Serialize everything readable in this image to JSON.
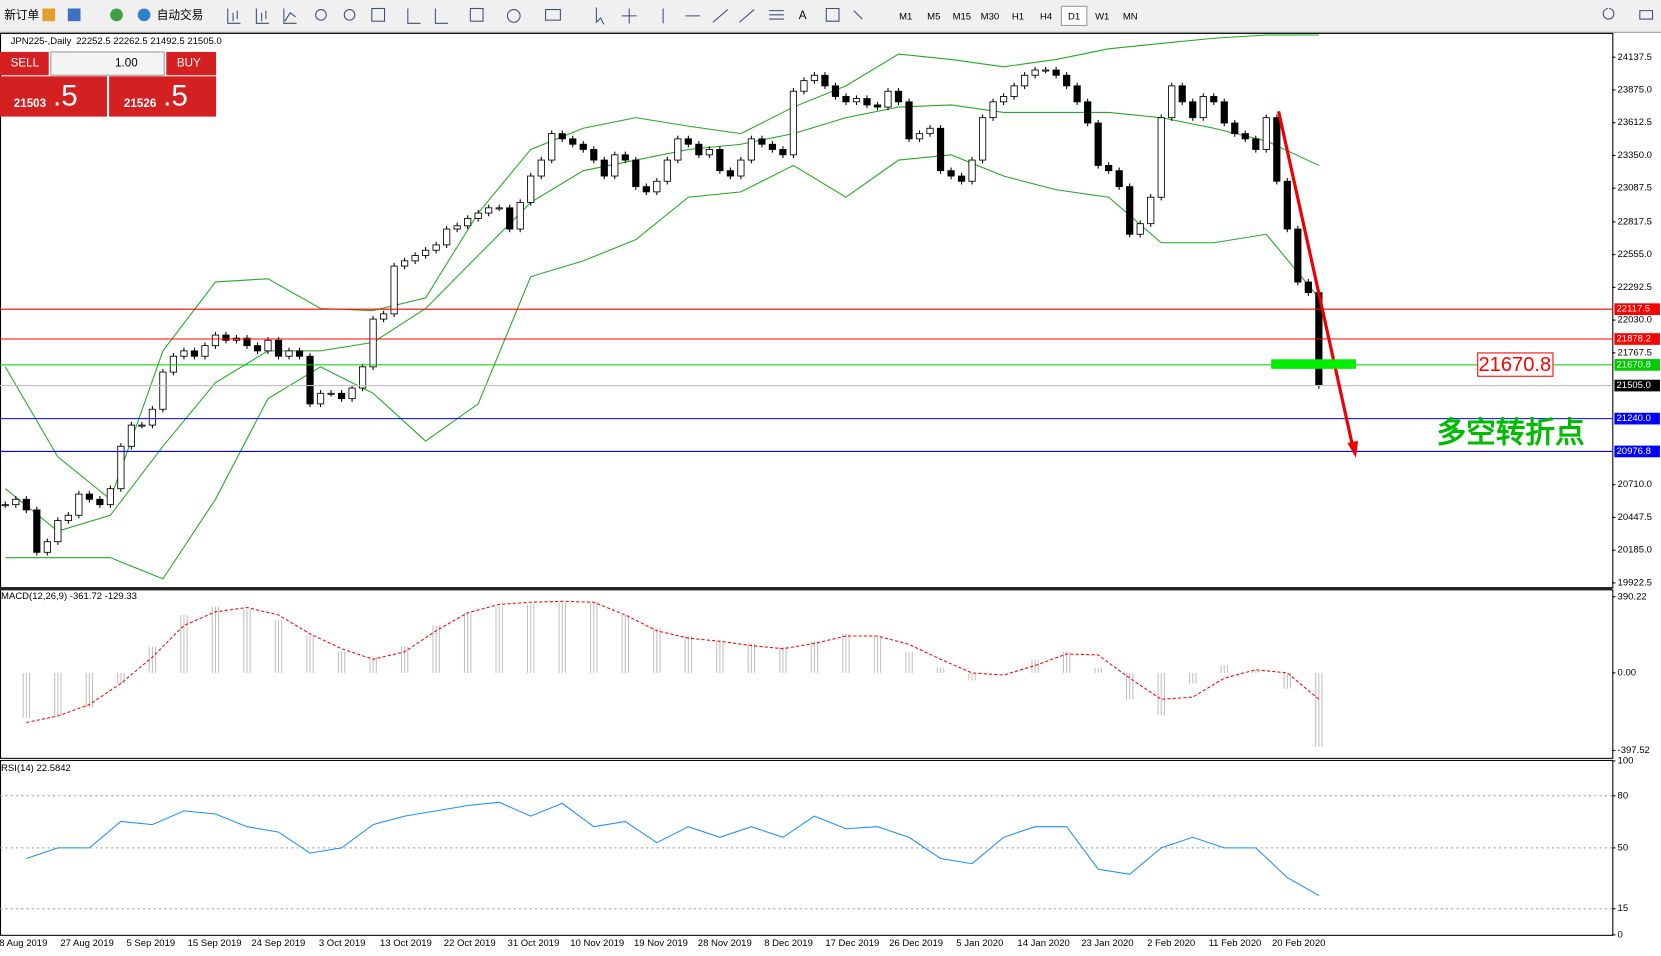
{
  "toolbar": {
    "new_order": "新订单",
    "auto_trading": "自动交易",
    "timeframes": [
      "M1",
      "M5",
      "M15",
      "M30",
      "H1",
      "H4",
      "D1",
      "W1",
      "MN"
    ]
  },
  "trade_panel": {
    "sell": "SELL",
    "buy": "BUY",
    "lots": "1.00",
    "bid": "21503",
    "bid_frac": ".5",
    "ask": "21526",
    "ask_frac": ".5"
  },
  "time_axis": [
    "8 Aug 2019",
    "27 Aug 2019",
    "5 Sep 2019",
    "15 Sep 2019",
    "24 Sep 2019",
    "3 Oct 2019",
    "13 Oct 2019",
    "22 Oct 2019",
    "31 Oct 2019",
    "10 Nov 2019",
    "19 Nov 2019",
    "28 Nov 2019",
    "8 Dec 2019",
    "17 Dec 2019",
    "26 Dec 2019",
    "5 Jan 2020",
    "14 Jan 2020",
    "23 Jan 2020",
    "2 Feb 2020",
    "11 Feb 2020",
    "20 Feb 2020"
  ],
  "chart_data": [
    {
      "type": "candlestick",
      "title": "JPN225-,Daily",
      "ohlc_header": "22252.5 22262.5 21492.5 21505.0",
      "close": [
        20550,
        20593,
        20508,
        20168,
        20253,
        20423,
        20465,
        20635,
        20593,
        20550,
        20678,
        21018,
        21188,
        21188,
        21315,
        21613,
        21740,
        21783,
        21740,
        21825,
        21910,
        21868,
        21885,
        21825,
        21783,
        21868,
        21740,
        21783,
        21740,
        21358,
        21443,
        21443,
        21400,
        21485,
        21655,
        22038,
        22080,
        22463,
        22505,
        22548,
        22590,
        22633,
        22760,
        22786,
        22845,
        22888,
        22930,
        22930,
        22760,
        22973,
        23185,
        23313,
        23525,
        23483,
        23440,
        23398,
        23313,
        23185,
        23355,
        23313,
        23100,
        23058,
        23143,
        23313,
        23483,
        23440,
        23355,
        23398,
        23228,
        23185,
        23313,
        23483,
        23440,
        23398,
        23355,
        23865,
        23950,
        23993,
        23908,
        23823,
        23780,
        23806,
        23755,
        23738,
        23865,
        23780,
        23483,
        23525,
        23568,
        23228,
        23185,
        23143,
        23313,
        23653,
        23780,
        23823,
        23908,
        23993,
        24035,
        24035,
        23993,
        23908,
        23780,
        23610,
        23270,
        23228,
        23100,
        22718,
        22803,
        23015,
        23653,
        23908,
        23780,
        23653,
        23823,
        23780,
        23610,
        23525,
        23483,
        23398,
        23653,
        23143,
        22760,
        22335,
        22250,
        21505
      ],
      "up_color": "#ffffff",
      "down_color": "#000000",
      "bands": {
        "color": "#22aa22",
        "x": [
          0,
          5,
          10,
          15,
          20,
          25,
          30,
          35,
          40,
          45,
          50,
          55,
          60,
          65,
          70,
          75,
          80,
          85,
          90,
          95,
          100,
          105,
          110,
          115,
          120,
          125
        ],
        "series": [
          {
            "values": [
              21655,
              20933,
              20593,
              21783,
              22336,
              22361,
              22123,
              22106,
              22208,
              22888,
              23398,
              23568,
              23653,
              23585,
              23525,
              23738,
              23908,
              24163,
              24120,
              24061,
              24120,
              24205,
              24248,
              24290,
              24316,
              24316
            ]
          },
          {
            "values": [
              20678,
              20338,
              20465,
              21018,
              21528,
              21783,
              21783,
              21851,
              22123,
              22548,
              22973,
              23228,
              23313,
              23398,
              23440,
              23525,
              23653,
              23738,
              23755,
              23695,
              23695,
              23695,
              23653,
              23568,
              23466,
              23270
            ]
          },
          {
            "values": [
              20125,
              20125,
              20125,
              19955,
              20593,
              21400,
              21655,
              21443,
              21060,
              21358,
              22378,
              22505,
              22675,
              23015,
              23058,
              23270,
              23015,
              23313,
              23355,
              23185,
              23075,
              23015,
              22650,
              22650,
              22718,
              22208
            ]
          }
        ]
      },
      "ylim": [
        19888.5,
        24324.5
      ],
      "yticks": [
        {
          "value": 24137.5,
          "label": "24137.5"
        },
        {
          "value": 23875,
          "label": "23875.0"
        },
        {
          "value": 23612.5,
          "label": "23612.5"
        },
        {
          "value": 23350,
          "label": "23350.0"
        },
        {
          "value": 23087.5,
          "label": "23087.5"
        },
        {
          "value": 22817.5,
          "label": "22817.5"
        },
        {
          "value": 22555,
          "label": "22555.0"
        },
        {
          "value": 22292.5,
          "label": "22292.5"
        },
        {
          "value": 22030,
          "label": "22030.0"
        },
        {
          "value": 21767.5,
          "label": "21767.5"
        },
        {
          "value": 20710,
          "label": "20710.0"
        },
        {
          "value": 20447.5,
          "label": "20447.5"
        },
        {
          "value": 20185,
          "label": "20185.0"
        },
        {
          "value": 19922.5,
          "label": "19922.5"
        }
      ],
      "lines": [
        {
          "value": 22117.5,
          "label": "22117.5",
          "color": "#ff0000"
        },
        {
          "value": 21878.2,
          "label": "21878.2",
          "color": "#ff0000"
        },
        {
          "value": 21670.8,
          "label": "21670.8",
          "color": "#00cc00"
        },
        {
          "value": 21505,
          "label": "21505.0",
          "color": "#c0c0c0",
          "label_color": "#000000"
        },
        {
          "value": 21240,
          "label": "21240.0",
          "color": "#0000ff"
        },
        {
          "value": 20976.8,
          "label": "20976.8",
          "color": "#0000ff"
        }
      ],
      "annotations": {
        "price_box": "21670.8",
        "turning_point": "多空转折点"
      }
    },
    {
      "type": "macd",
      "title": "MACD(12,26,9) -361.72 -129.33",
      "x": [
        2,
        5,
        8,
        11,
        14,
        17,
        20,
        23,
        26,
        29,
        32,
        35,
        38,
        41,
        44,
        47,
        50,
        53,
        56,
        59,
        62,
        65,
        68,
        71,
        74,
        77,
        80,
        83,
        86,
        89,
        92,
        95,
        98,
        101,
        104,
        107,
        110,
        113,
        116,
        119,
        122,
        125
      ],
      "histogram": {
        "color": "#c0c0c0",
        "values": [
          -232,
          -216,
          -178,
          -54,
          135,
          297,
          340,
          324,
          270,
          189,
          108,
          81,
          135,
          243,
          308,
          340,
          351,
          362,
          362,
          297,
          232,
          189,
          162,
          151,
          135,
          162,
          200,
          189,
          108,
          27,
          -38,
          0,
          70,
          108,
          27,
          -135,
          -216,
          -54,
          38,
          16,
          -81,
          -378
        ]
      },
      "signal": {
        "color": "#ff0000",
        "values": [
          -254,
          -221,
          -162,
          -54,
          81,
          243,
          313,
          335,
          297,
          200,
          124,
          70,
          108,
          216,
          308,
          351,
          362,
          367,
          362,
          297,
          216,
          178,
          162,
          140,
          124,
          151,
          189,
          189,
          146,
          70,
          0,
          -11,
          38,
          97,
          92,
          -27,
          -135,
          -124,
          -27,
          16,
          0,
          -135
        ]
      },
      "ylim": [
        -435,
        423
      ],
      "yticks": [
        {
          "value": 390.22,
          "label": "390.22"
        },
        {
          "value": 0,
          "label": "0.00"
        },
        {
          "value": -397.52,
          "label": "-397.52"
        }
      ]
    },
    {
      "type": "rsi",
      "title": "RSI(14) 22.5842",
      "x": [
        2,
        5,
        8,
        11,
        14,
        17,
        20,
        23,
        26,
        29,
        32,
        35,
        38,
        41,
        44,
        47,
        50,
        53,
        56,
        59,
        62,
        65,
        68,
        71,
        74,
        77,
        80,
        83,
        86,
        89,
        92,
        95,
        98,
        101,
        104,
        107,
        110,
        113,
        116,
        119,
        122,
        125
      ],
      "color": "#1e90ff",
      "values": [
        43.9,
        50,
        50,
        65.2,
        63.4,
        71.3,
        69.5,
        62.2,
        59.1,
        47,
        50,
        63.4,
        68.3,
        71.3,
        74.4,
        76.2,
        68.3,
        75.6,
        62.2,
        65.2,
        53,
        62.2,
        56.1,
        62.2,
        56.1,
        68.3,
        61,
        62.2,
        56.1,
        43.9,
        40.9,
        56.1,
        62.2,
        62.2,
        37.8,
        34.8,
        50,
        56.1,
        50,
        50,
        32.9,
        22.6
      ],
      "ylim": [
        0,
        100
      ],
      "yticks": [
        100,
        80,
        50,
        15,
        0
      ]
    }
  ]
}
